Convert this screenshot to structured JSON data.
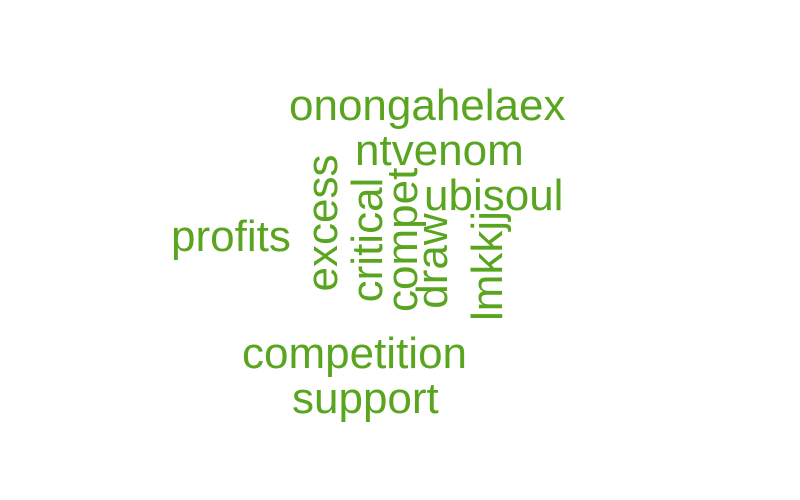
{
  "word_cloud": {
    "color": "#5aa51f",
    "words": [
      {
        "text": "onongahelaex",
        "orientation": "horizontal"
      },
      {
        "text": "ntvenom",
        "orientation": "horizontal"
      },
      {
        "text": "ubisoul",
        "orientation": "horizontal"
      },
      {
        "text": "profits",
        "orientation": "horizontal"
      },
      {
        "text": "excess",
        "orientation": "vertical"
      },
      {
        "text": "critical",
        "orientation": "vertical"
      },
      {
        "text": "compet",
        "orientation": "vertical"
      },
      {
        "text": "draw",
        "orientation": "vertical"
      },
      {
        "text": "lmkkjj",
        "orientation": "vertical"
      },
      {
        "text": "competition",
        "orientation": "horizontal"
      },
      {
        "text": "support",
        "orientation": "horizontal"
      }
    ]
  }
}
